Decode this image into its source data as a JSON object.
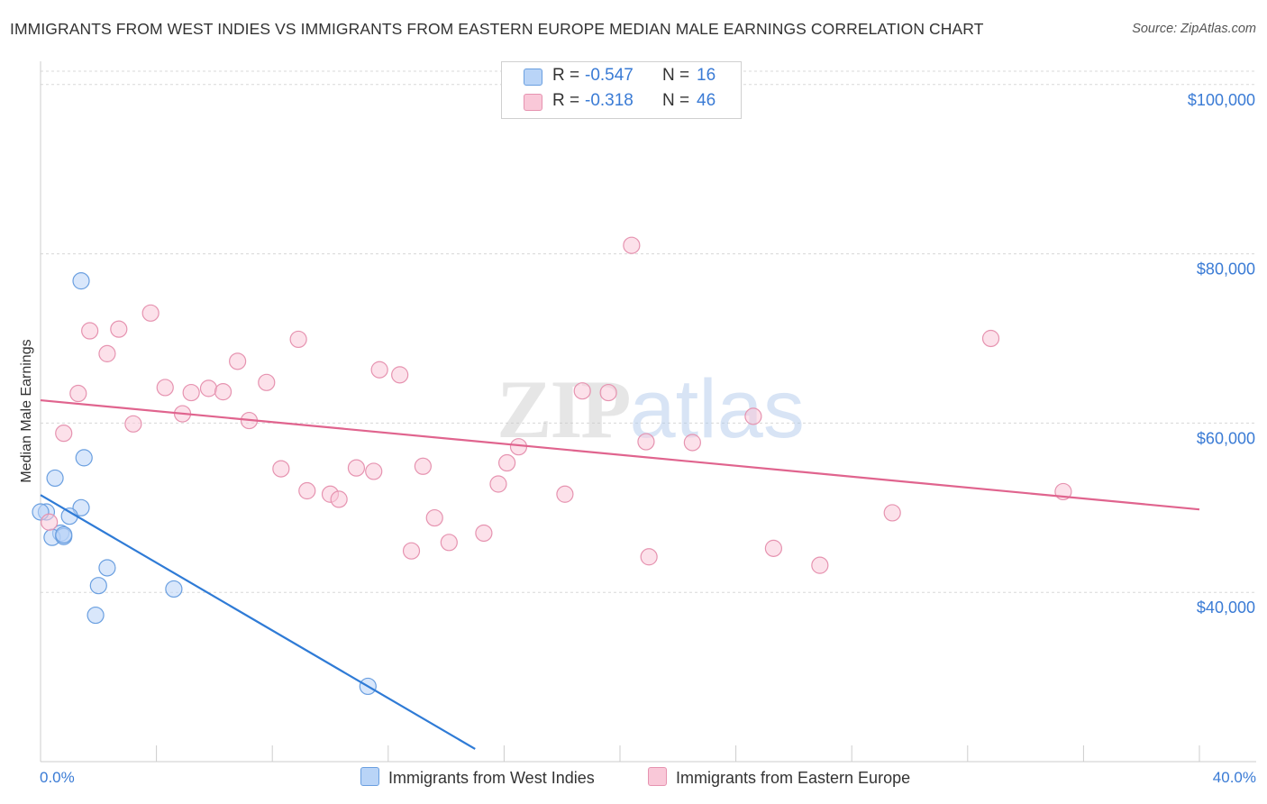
{
  "chart_data": {
    "type": "scatter",
    "title": "IMMIGRANTS FROM WEST INDIES VS IMMIGRANTS FROM EASTERN EUROPE MEDIAN MALE EARNINGS CORRELATION CHART",
    "source": "Source: ZipAtlas.com",
    "xlabel": "",
    "ylabel": "Median Male Earnings",
    "x_tick_labels": [
      "0.0%",
      "40.0%"
    ],
    "xlim": [
      0,
      40
    ],
    "ylim": [
      20000,
      102000
    ],
    "y_ticks": [
      {
        "value": 40000,
        "label": "$40,000"
      },
      {
        "value": 60000,
        "label": "$60,000"
      },
      {
        "value": 80000,
        "label": "$80,000"
      },
      {
        "value": 100000,
        "label": "$100,000"
      }
    ],
    "grid": true,
    "watermark": "ZIPatlas",
    "series": [
      {
        "name": "Immigrants from West Indies",
        "color": "#b9d4f7",
        "edge": "#6a9fe0",
        "line_color": "#2f7bd6",
        "R": "-0.547",
        "N": "16",
        "trend": {
          "x0": 0.0,
          "y0": 51500,
          "x1": 15.0,
          "y1": 21500
        },
        "points": [
          {
            "x": 1.4,
            "y": 76800
          },
          {
            "x": 1.5,
            "y": 55900
          },
          {
            "x": 0.5,
            "y": 53500
          },
          {
            "x": 0.2,
            "y": 49500
          },
          {
            "x": 1.4,
            "y": 50000
          },
          {
            "x": 1.0,
            "y": 49000
          },
          {
            "x": 0.7,
            "y": 47000
          },
          {
            "x": 0.4,
            "y": 46500
          },
          {
            "x": 0.8,
            "y": 46600
          },
          {
            "x": 0.8,
            "y": 46800
          },
          {
            "x": 0.0,
            "y": 49500
          },
          {
            "x": 2.3,
            "y": 42900
          },
          {
            "x": 2.0,
            "y": 40800
          },
          {
            "x": 4.6,
            "y": 40400
          },
          {
            "x": 1.9,
            "y": 37300
          },
          {
            "x": 11.3,
            "y": 28900
          }
        ]
      },
      {
        "name": "Immigrants from Eastern Europe",
        "color": "#f9c8d8",
        "edge": "#e693b0",
        "line_color": "#e0648e",
        "R": "-0.318",
        "N": "46",
        "trend": {
          "x0": 0.0,
          "y0": 62700,
          "x1": 40.0,
          "y1": 49800
        },
        "points": [
          {
            "x": 20.4,
            "y": 81000
          },
          {
            "x": 3.8,
            "y": 73000
          },
          {
            "x": 1.7,
            "y": 70900
          },
          {
            "x": 2.7,
            "y": 71100
          },
          {
            "x": 8.9,
            "y": 69900
          },
          {
            "x": 32.8,
            "y": 70000
          },
          {
            "x": 2.3,
            "y": 68200
          },
          {
            "x": 6.8,
            "y": 67300
          },
          {
            "x": 11.7,
            "y": 66300
          },
          {
            "x": 12.4,
            "y": 65700
          },
          {
            "x": 7.8,
            "y": 64800
          },
          {
            "x": 4.3,
            "y": 64200
          },
          {
            "x": 5.8,
            "y": 64100
          },
          {
            "x": 6.3,
            "y": 63700
          },
          {
            "x": 5.2,
            "y": 63600
          },
          {
            "x": 1.3,
            "y": 63500
          },
          {
            "x": 18.7,
            "y": 63800
          },
          {
            "x": 19.6,
            "y": 63600
          },
          {
            "x": 4.9,
            "y": 61100
          },
          {
            "x": 7.2,
            "y": 60300
          },
          {
            "x": 3.2,
            "y": 59900
          },
          {
            "x": 0.8,
            "y": 58800
          },
          {
            "x": 24.6,
            "y": 60800
          },
          {
            "x": 16.5,
            "y": 57200
          },
          {
            "x": 20.9,
            "y": 57800
          },
          {
            "x": 22.5,
            "y": 57700
          },
          {
            "x": 16.1,
            "y": 55300
          },
          {
            "x": 8.3,
            "y": 54600
          },
          {
            "x": 10.9,
            "y": 54700
          },
          {
            "x": 11.5,
            "y": 54300
          },
          {
            "x": 13.2,
            "y": 54900
          },
          {
            "x": 15.8,
            "y": 52800
          },
          {
            "x": 9.2,
            "y": 52000
          },
          {
            "x": 10.0,
            "y": 51600
          },
          {
            "x": 10.3,
            "y": 51000
          },
          {
            "x": 18.1,
            "y": 51600
          },
          {
            "x": 35.3,
            "y": 51900
          },
          {
            "x": 29.4,
            "y": 49400
          },
          {
            "x": 13.6,
            "y": 48800
          },
          {
            "x": 15.3,
            "y": 47000
          },
          {
            "x": 14.1,
            "y": 45900
          },
          {
            "x": 12.8,
            "y": 44900
          },
          {
            "x": 25.3,
            "y": 45200
          },
          {
            "x": 21.0,
            "y": 44200
          },
          {
            "x": 26.9,
            "y": 43200
          },
          {
            "x": 0.3,
            "y": 48300
          }
        ]
      }
    ]
  },
  "legend": {
    "r_label": "R =",
    "n_label": "N =",
    "series1_r": "-0.547",
    "series1_n": "16",
    "series2_r": "-0.318",
    "series2_n": "46",
    "series1_name": "Immigrants from West Indies",
    "series2_name": "Immigrants from Eastern Europe"
  }
}
